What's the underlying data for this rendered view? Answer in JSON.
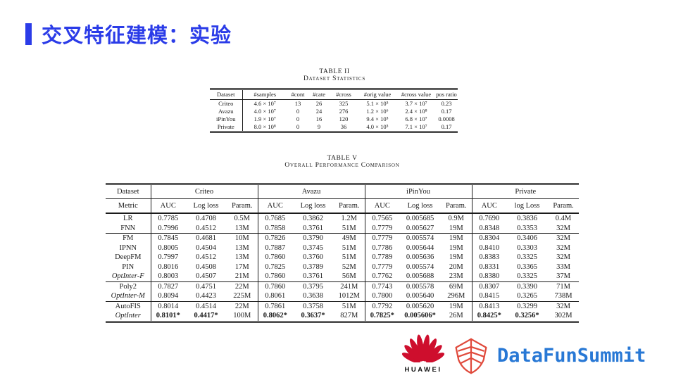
{
  "slide": {
    "title": "交叉特征建模：实验",
    "accent_color": "#2B3CE8"
  },
  "table2": {
    "caption": "TABLE II",
    "subcaption": "Dataset Statistics",
    "headers": [
      "Dataset",
      "#samples",
      "#cont",
      "#cate",
      "#cross",
      "#orig value",
      "#cross value",
      "pos ratio"
    ],
    "rows": [
      [
        "Criteo",
        "4.6 × 10⁷",
        "13",
        "26",
        "325",
        "5.1 × 10⁵",
        "3.7 × 10⁷",
        "0.23"
      ],
      [
        "Avazu",
        "4.0 × 10⁷",
        "0",
        "24",
        "276",
        "1.2 × 10⁶",
        "2.4 × 10⁸",
        "0.17"
      ],
      [
        "iPinYou",
        "1.9 × 10⁷",
        "0",
        "16",
        "120",
        "9.4 × 10⁵",
        "6.8 × 10⁷",
        "0.0008"
      ],
      [
        "Private",
        "8.0 × 10⁸",
        "0",
        "9",
        "36",
        "4.0 × 10⁵",
        "7.1 × 10⁷",
        "0.17"
      ]
    ]
  },
  "table5": {
    "caption": "TABLE V",
    "subcaption": "Overall Performance Comparison",
    "corner_top": "Dataset",
    "corner_bottom": "Metric",
    "datasets": [
      "Criteo",
      "Avazu",
      "iPinYou",
      "Private"
    ],
    "metric_headers": [
      "AUC",
      "Log loss",
      "Param.",
      "AUC",
      "Log loss",
      "Param.",
      "AUC",
      "Log loss",
      "Param.",
      "AUC",
      "log Loss",
      "Param."
    ],
    "groups": [
      {
        "rows": [
          {
            "model": "LR",
            "em": false,
            "values": [
              "0.7785",
              "0.4708",
              "0.5M",
              "0.7685",
              "0.3862",
              "1.2M",
              "0.7565",
              "0.005685",
              "0.9M",
              "0.7690",
              "0.3836",
              "0.4M"
            ]
          },
          {
            "model": "FNN",
            "em": false,
            "values": [
              "0.7996",
              "0.4512",
              "13M",
              "0.7858",
              "0.3761",
              "51M",
              "0.7779",
              "0.005627",
              "19M",
              "0.8348",
              "0.3353",
              "32M"
            ]
          }
        ]
      },
      {
        "rows": [
          {
            "model": "FM",
            "em": false,
            "values": [
              "0.7845",
              "0.4681",
              "10M",
              "0.7826",
              "0.3790",
              "49M",
              "0.7779",
              "0.005574",
              "19M",
              "0.8304",
              "0.3406",
              "32M"
            ]
          },
          {
            "model": "IPNN",
            "em": false,
            "values": [
              "0.8005",
              "0.4504",
              "13M",
              "0.7887",
              "0.3745",
              "51M",
              "0.7786",
              "0.005644",
              "19M",
              "0.8410",
              "0.3303",
              "32M"
            ]
          },
          {
            "model": "DeepFM",
            "em": false,
            "values": [
              "0.7997",
              "0.4512",
              "13M",
              "0.7860",
              "0.3760",
              "51M",
              "0.7789",
              "0.005636",
              "19M",
              "0.8383",
              "0.3325",
              "32M"
            ]
          },
          {
            "model": "PIN",
            "em": false,
            "values": [
              "0.8016",
              "0.4508",
              "17M",
              "0.7825",
              "0.3789",
              "52M",
              "0.7779",
              "0.005574",
              "20M",
              "0.8331",
              "0.3365",
              "33M"
            ]
          },
          {
            "model": "OptInter-F",
            "em": true,
            "values": [
              "0.8003",
              "0.4507",
              "21M",
              "0.7860",
              "0.3761",
              "56M",
              "0.7762",
              "0.005688",
              "23M",
              "0.8380",
              "0.3325",
              "37M"
            ]
          }
        ]
      },
      {
        "rows": [
          {
            "model": "Poly2",
            "em": false,
            "values": [
              "0.7827",
              "0.4751",
              "22M",
              "0.7860",
              "0.3795",
              "241M",
              "0.7743",
              "0.005578",
              "69M",
              "0.8307",
              "0.3390",
              "71M"
            ]
          },
          {
            "model": "OptInter-M",
            "em": true,
            "values": [
              "0.8094",
              "0.4423",
              "225M",
              "0.8061",
              "0.3638",
              "1012M",
              "0.7800",
              "0.005640",
              "296M",
              "0.8415",
              "0.3265",
              "738M"
            ]
          }
        ]
      },
      {
        "rows": [
          {
            "model": "AutoFIS",
            "em": false,
            "values": [
              "0.8014",
              "0.4514",
              "22M",
              "0.7861",
              "0.3758",
              "51M",
              "0.7792",
              "0.005620",
              "19M",
              "0.8413",
              "0.3299",
              "32M"
            ]
          },
          {
            "model": "OptInter",
            "em": true,
            "values": [
              "0.8101*",
              "0.4417*",
              "100M",
              "0.8062*",
              "0.3637*",
              "827M",
              "0.7825*",
              "0.005606*",
              "26M",
              "0.8425*",
              "0.3256*",
              "302M"
            ]
          }
        ]
      }
    ]
  },
  "footer": {
    "huawei_label": "HUAWEI",
    "summit_label": "DataFunSummit",
    "huawei_red": "#CE0E2D",
    "datafun_red": "#E04A3C",
    "summit_blue": "#2878D5"
  }
}
